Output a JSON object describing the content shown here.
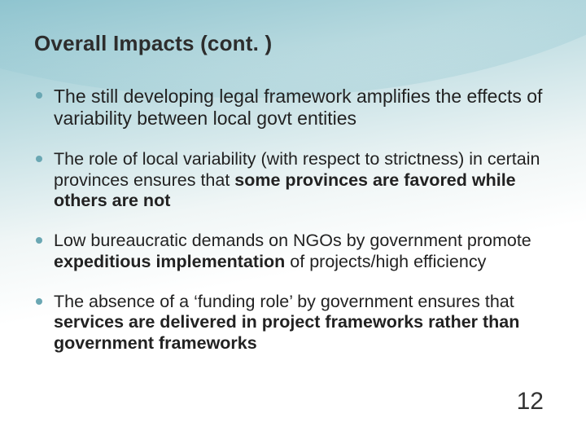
{
  "slide": {
    "title": "Overall Impacts (cont. )",
    "page_number": "12",
    "background": {
      "gradient_start": "#8fc4cf",
      "gradient_mid": "#f0f6f6",
      "gradient_end": "#ffffff"
    },
    "title_fontsize": 26,
    "bullet_color": "#6aa7b3",
    "text_color": "#222222",
    "bullets": [
      {
        "fontsize": 23,
        "pre": "The still developing legal framework amplifies the effects of variability between local govt entities",
        "bold": "",
        "post": ""
      },
      {
        "fontsize": 21.5,
        "pre": "The role of local variability (with respect to strictness) in certain provinces ensures that ",
        "bold": "some provinces are favored while others are not",
        "post": ""
      },
      {
        "fontsize": 21.5,
        "pre": "Low bureaucratic demands on NGOs by government promote ",
        "bold": "expeditious implementation",
        "post": " of projects/high efficiency"
      },
      {
        "fontsize": 21.5,
        "pre": "The absence of a ‘funding role’ by government ensures that ",
        "bold": "services are delivered in project frameworks rather than government frameworks",
        "post": ""
      }
    ]
  }
}
